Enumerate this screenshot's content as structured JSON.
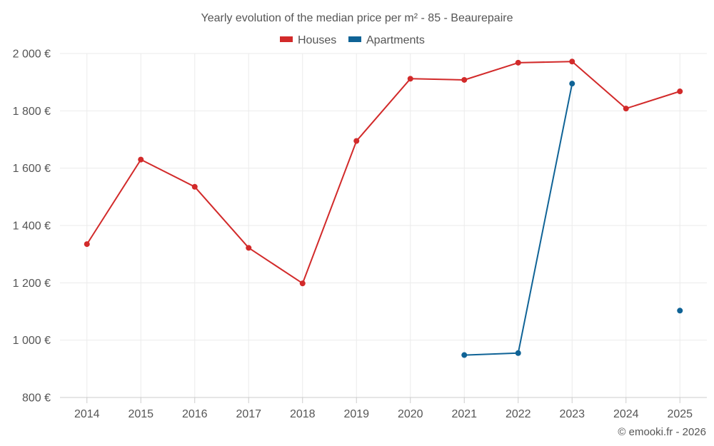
{
  "chart_data": {
    "type": "line",
    "title": "Yearly evolution of the median price per m² - 85 - Beaurepaire",
    "categories": [
      "2014",
      "2015",
      "2016",
      "2017",
      "2018",
      "2019",
      "2020",
      "2021",
      "2022",
      "2023",
      "2024",
      "2025"
    ],
    "series": [
      {
        "name": "Houses",
        "color": "#d22a2a",
        "values": [
          1335,
          1630,
          1535,
          1322,
          1198,
          1695,
          1912,
          1908,
          1968,
          1972,
          1808,
          1868
        ]
      },
      {
        "name": "Apartments",
        "color": "#0f6396",
        "values": [
          null,
          null,
          null,
          null,
          null,
          null,
          null,
          948,
          955,
          1895,
          null,
          1103
        ]
      }
    ],
    "ylim": [
      800,
      2000
    ],
    "yticks": [
      800,
      1000,
      1200,
      1400,
      1600,
      1800,
      2000
    ],
    "ytick_labels": [
      "800 €",
      "1 000 €",
      "1 200 €",
      "1 400 €",
      "1 600 €",
      "1 800 €",
      "2 000 €"
    ],
    "xlabel": "",
    "ylabel": "",
    "legend_position": "top-center",
    "grid": true
  },
  "credit": "© emooki.fr - 2026"
}
